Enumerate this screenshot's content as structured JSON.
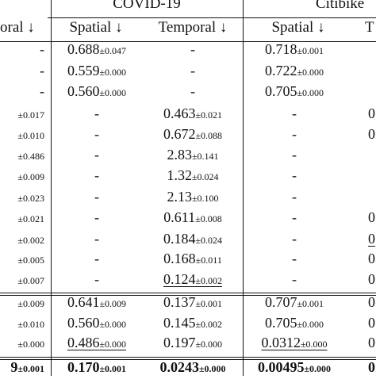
{
  "header": {
    "group_left_col_fragment": "oral ↓",
    "covid": "COVID-19",
    "citibike": "Citibike",
    "spatial": "Spatial ↓",
    "temporal": "Temporal ↓",
    "spatial2": "Spatial ↓",
    "right_fragment": "T"
  },
  "rows": [
    {
      "c0": {
        "m": "-",
        "s": ""
      },
      "c1": {
        "m": "0.688",
        "s": "±0.047"
      },
      "c2": {
        "m": "-",
        "s": ""
      },
      "c3": {
        "m": "0.718",
        "s": "±0.001"
      },
      "c4": ""
    },
    {
      "c0": {
        "m": "-",
        "s": ""
      },
      "c1": {
        "m": "0.559",
        "s": "±0.000"
      },
      "c2": {
        "m": "-",
        "s": ""
      },
      "c3": {
        "m": "0.722",
        "s": "±0.000"
      },
      "c4": ""
    },
    {
      "c0": {
        "m": "-",
        "s": ""
      },
      "c1": {
        "m": "0.560",
        "s": "±0.000"
      },
      "c2": {
        "m": "-",
        "s": ""
      },
      "c3": {
        "m": "0.705",
        "s": "±0.000"
      },
      "c4": ""
    },
    {
      "c0": {
        "m": "",
        "s": "±0.017"
      },
      "c1": {
        "m": "-",
        "s": ""
      },
      "c2": {
        "m": "0.463",
        "s": "±0.021"
      },
      "c3": {
        "m": "-",
        "s": ""
      },
      "c4": "0"
    },
    {
      "c0": {
        "m": "",
        "s": "±0.010"
      },
      "c1": {
        "m": "-",
        "s": ""
      },
      "c2": {
        "m": "0.672",
        "s": "±0.088"
      },
      "c3": {
        "m": "-",
        "s": ""
      },
      "c4": "0"
    },
    {
      "c0": {
        "m": "",
        "s": "±0.486"
      },
      "c1": {
        "m": "-",
        "s": ""
      },
      "c2": {
        "m": "2.83",
        "s": "±0.141"
      },
      "c3": {
        "m": "-",
        "s": ""
      },
      "c4": ""
    },
    {
      "c0": {
        "m": "",
        "s": "±0.009"
      },
      "c1": {
        "m": "-",
        "s": ""
      },
      "c2": {
        "m": "1.32",
        "s": "±0.024"
      },
      "c3": {
        "m": "-",
        "s": ""
      },
      "c4": ""
    },
    {
      "c0": {
        "m": "",
        "s": "±0.023"
      },
      "c1": {
        "m": "-",
        "s": ""
      },
      "c2": {
        "m": "2.13",
        "s": "±0.100"
      },
      "c3": {
        "m": "-",
        "s": ""
      },
      "c4": ""
    },
    {
      "c0": {
        "m": "",
        "s": "±0.021"
      },
      "c1": {
        "m": "-",
        "s": ""
      },
      "c2": {
        "m": "0.611",
        "s": "±0.008"
      },
      "c3": {
        "m": "-",
        "s": ""
      },
      "c4": "0"
    },
    {
      "c0": {
        "m": "",
        "s": "±0.002"
      },
      "c1": {
        "m": "-",
        "s": ""
      },
      "c2": {
        "m": "0.184",
        "s": "±0.024"
      },
      "c3": {
        "m": "-",
        "s": ""
      },
      "c4": "0"
    },
    {
      "c0": {
        "m": "",
        "s": "±0.005"
      },
      "c1": {
        "m": "-",
        "s": ""
      },
      "c2": {
        "m": "0.168",
        "s": "±0.011"
      },
      "c3": {
        "m": "-",
        "s": ""
      },
      "c4": "0"
    },
    {
      "c0": {
        "m": "",
        "s": "±0.007"
      },
      "c1": {
        "m": "-",
        "s": ""
      },
      "c2": {
        "m": "0.124",
        "s": "±0.002",
        "u": true
      },
      "c3": {
        "m": "-",
        "s": ""
      },
      "c4": "0"
    },
    {
      "c0": {
        "m": "",
        "s": "±0.009"
      },
      "c1": {
        "m": "0.641",
        "s": "±0.009"
      },
      "c2": {
        "m": "0.137",
        "s": "±0.001"
      },
      "c3": {
        "m": "0.707",
        "s": "±0.001"
      },
      "c4": "0"
    },
    {
      "c0": {
        "m": "",
        "s": "±0.010"
      },
      "c1": {
        "m": "0.560",
        "s": "±0.000"
      },
      "c2": {
        "m": "0.145",
        "s": "±0.002"
      },
      "c3": {
        "m": "0.705",
        "s": "±0.000"
      },
      "c4": "0"
    },
    {
      "c0": {
        "m": "",
        "s": "±0.000"
      },
      "c1": {
        "m": "0.486",
        "s": "±0.000",
        "u": true
      },
      "c2": {
        "m": "0.197",
        "s": "±0.000"
      },
      "c3": {
        "m": "0.0312",
        "s": "±0.000",
        "u": true
      },
      "c4": "0"
    },
    {
      "c0": {
        "m": "9",
        "s": "±0.001",
        "b": true
      },
      "c1": {
        "m": "0.170",
        "s": "±0.001",
        "b": true
      },
      "c2": {
        "m": "0.0243",
        "s": "±0.000",
        "b": true
      },
      "c3": {
        "m": "0.00495",
        "s": "±0.000",
        "b": true
      },
      "c4": "0"
    }
  ]
}
